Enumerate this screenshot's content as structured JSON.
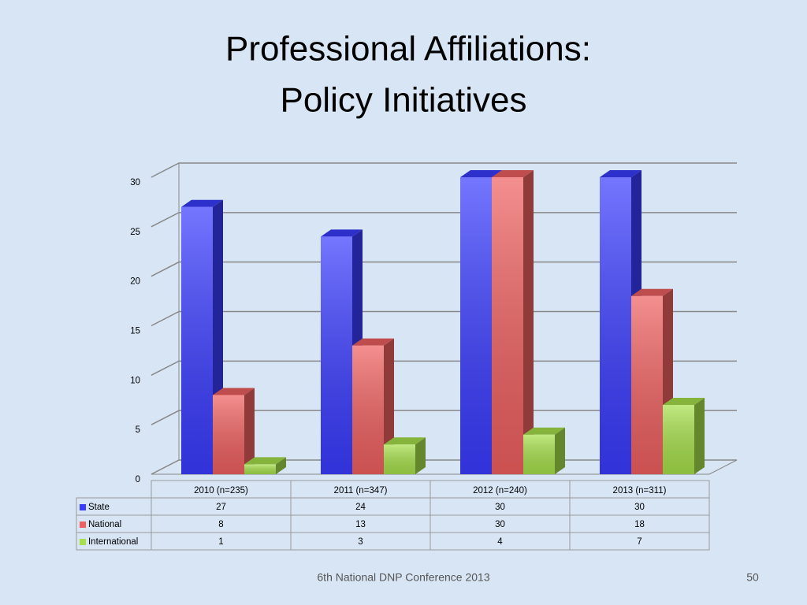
{
  "chart_data": {
    "type": "bar3d",
    "title": "Professional Affiliations:",
    "subtitle": "Policy Initiatives",
    "categories": [
      "2010 (n=235)",
      "2011 (n=347)",
      "2012 (n=240)",
      "2013 (n=311)"
    ],
    "series": [
      {
        "name": "State",
        "color": "#3a3cff",
        "values": [
          27,
          24,
          30,
          30
        ]
      },
      {
        "name": "National",
        "color": "#f06060",
        "values": [
          8,
          13,
          30,
          18
        ]
      },
      {
        "name": "International",
        "color": "#a6e04a",
        "values": [
          1,
          3,
          4,
          7
        ]
      }
    ],
    "ylim": [
      0,
      30
    ],
    "yticks": [
      0,
      5,
      10,
      15,
      20,
      25,
      30
    ],
    "grid": true,
    "data_table": true
  },
  "footer": {
    "text": "6th National DNP Conference  2013",
    "page": "50"
  }
}
